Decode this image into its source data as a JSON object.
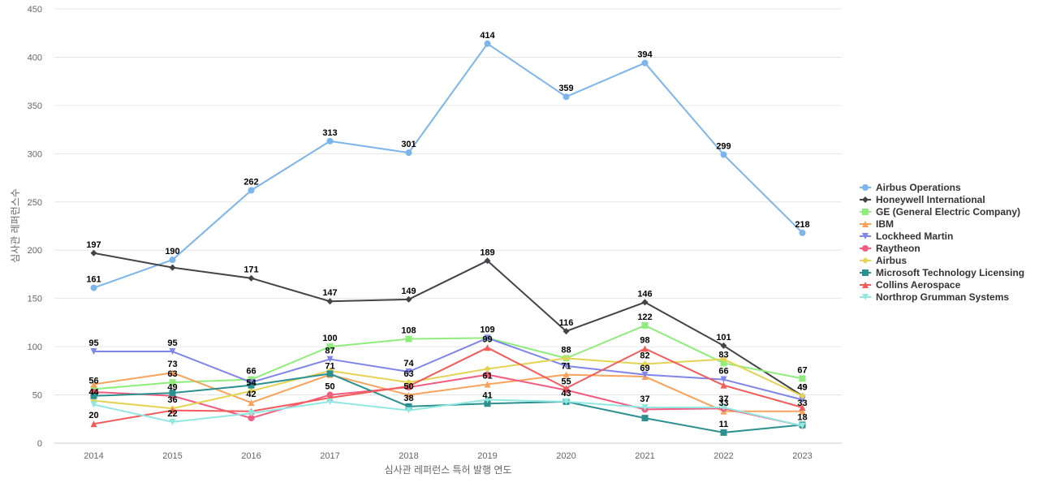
{
  "chart_data": {
    "type": "line",
    "title": "",
    "xlabel": "심사관 레퍼런스 특허 발행 연도",
    "ylabel": "심사관 레퍼런스수",
    "x": [
      "2014",
      "2015",
      "2016",
      "2017",
      "2018",
      "2019",
      "2020",
      "2021",
      "2022",
      "2023"
    ],
    "ylim": [
      0,
      450
    ],
    "yticks": [
      0,
      50,
      100,
      150,
      200,
      250,
      300,
      350,
      400,
      450
    ],
    "grid": true,
    "legend_position": "right",
    "series": [
      {
        "name": "Airbus Operations",
        "color": "#7cb5ec",
        "marker": "circle",
        "values": [
          161,
          190,
          262,
          313,
          301,
          414,
          359,
          394,
          299,
          218
        ],
        "labels": true
      },
      {
        "name": "Honeywell International",
        "color": "#434348",
        "marker": "diamond",
        "values": [
          197,
          182,
          171,
          147,
          149,
          189,
          116,
          146,
          101,
          49
        ],
        "labels": [
          true,
          false,
          true,
          true,
          true,
          true,
          true,
          true,
          true,
          true
        ]
      },
      {
        "name": "GE (General Electric Company)",
        "color": "#90ed7d",
        "marker": "square",
        "values": [
          56,
          63,
          66,
          100,
          108,
          109,
          88,
          122,
          83,
          67
        ],
        "labels": true
      },
      {
        "name": "IBM",
        "color": "#f7a35c",
        "marker": "triangle",
        "values": [
          61,
          73,
          42,
          71,
          50,
          61,
          71,
          69,
          33,
          33
        ],
        "labels": [
          false,
          true,
          true,
          true,
          true,
          true,
          true,
          true,
          true,
          true
        ]
      },
      {
        "name": "Lockheed Martin",
        "color": "#8085e9",
        "marker": "triangle-down",
        "values": [
          95,
          95,
          63,
          87,
          74,
          109,
          80,
          71,
          66,
          45
        ],
        "labels": [
          true,
          true,
          false,
          true,
          true,
          false,
          false,
          false,
          true,
          false
        ]
      },
      {
        "name": "Raytheon",
        "color": "#f15c80",
        "marker": "circle",
        "values": [
          53,
          49,
          26,
          50,
          58,
          71,
          55,
          35,
          36,
          18
        ],
        "labels": [
          false,
          true,
          false,
          true,
          false,
          false,
          true,
          false,
          false,
          false
        ]
      },
      {
        "name": "Airbus",
        "color": "#e4d354",
        "marker": "diamond",
        "values": [
          44,
          36,
          54,
          75,
          63,
          77,
          88,
          82,
          87,
          49
        ],
        "labels": [
          true,
          true,
          true,
          false,
          true,
          false,
          false,
          true,
          false,
          true
        ]
      },
      {
        "name": "Microsoft Technology Licensing",
        "color": "#2b908f",
        "marker": "square",
        "values": [
          49,
          52,
          60,
          72,
          38,
          41,
          43,
          26,
          11,
          19
        ],
        "labels": [
          false,
          false,
          false,
          false,
          true,
          true,
          true,
          false,
          true,
          false
        ]
      },
      {
        "name": "Collins Aerospace",
        "color": "#f45b5b",
        "marker": "triangle",
        "values": [
          20,
          34,
          33,
          47,
          59,
          99,
          57,
          98,
          60,
          37
        ],
        "labels": [
          true,
          false,
          false,
          false,
          false,
          true,
          false,
          true,
          false,
          false
        ]
      },
      {
        "name": "Northrop Grumman Systems",
        "color": "#91e8e1",
        "marker": "triangle-down",
        "values": [
          40,
          22,
          31,
          43,
          34,
          45,
          43,
          37,
          37,
          18
        ],
        "labels": [
          false,
          true,
          false,
          false,
          false,
          false,
          false,
          true,
          true,
          true
        ]
      }
    ]
  }
}
